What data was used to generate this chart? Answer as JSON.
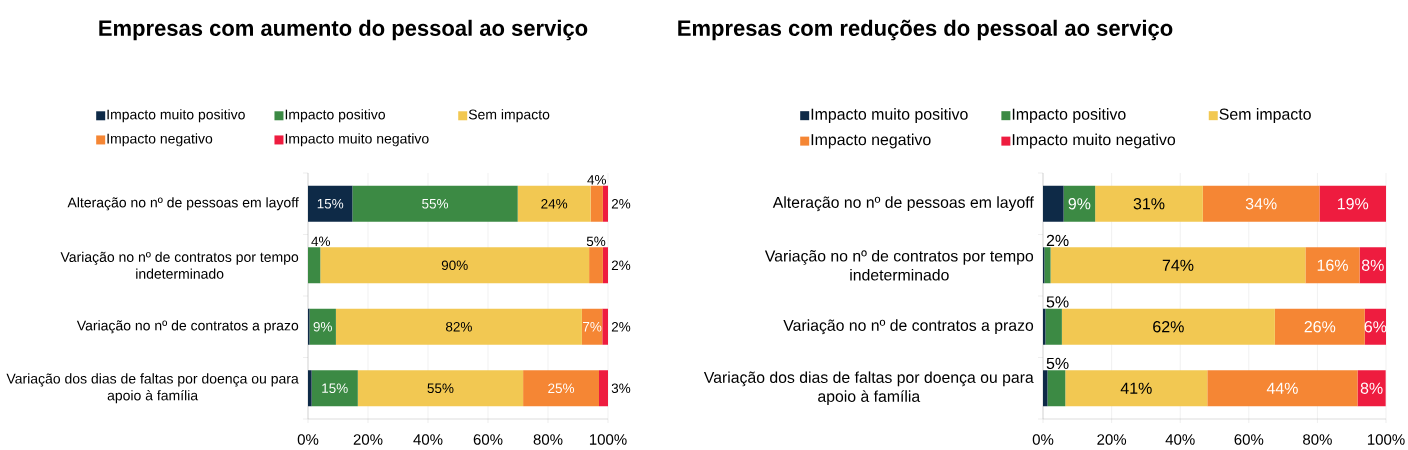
{
  "chart_data": [
    {
      "type": "bar",
      "orientation": "horizontal",
      "stacked": true,
      "title": "Empresas com aumento do pessoal ao serviço",
      "categories": [
        "Alteração no nº de pessoas em layoff",
        "Variação no nº de contratos por tempo indeterminado",
        "Variação no nº de contratos a prazo",
        "Variação dos dias de faltas por doença ou para apoio à família"
      ],
      "series": [
        {
          "name": "Impacto muito positivo",
          "color": "#0e2a47",
          "values": [
            14.8,
            0,
            0.5,
            1.2
          ],
          "value_labels": [
            "15%",
            null,
            null,
            null
          ]
        },
        {
          "name": "Impacto positivo",
          "color": "#3c8a44",
          "values": [
            55.1,
            4.1,
            8.8,
            15.4
          ],
          "value_labels": [
            "55%",
            "4%",
            "9%",
            "15%"
          ]
        },
        {
          "name": "Sem impacto",
          "color": "#f2c852",
          "values": [
            24.3,
            89.6,
            82.0,
            55.1
          ],
          "value_labels": [
            "24%",
            "90%",
            "82%",
            "55%"
          ]
        },
        {
          "name": "Impacto negativo",
          "color": "#f58634",
          "values": [
            4.1,
            4.6,
            6.8,
            25.3
          ],
          "value_labels": [
            "4%",
            "5%",
            "7%",
            "25%"
          ]
        },
        {
          "name": "Impacto muito negativo",
          "color": "#ee1c3f",
          "values": [
            1.7,
            1.7,
            1.9,
            3.0
          ],
          "value_labels": [
            "2%",
            "2%",
            "2%",
            "3%"
          ]
        }
      ],
      "xlim": [
        0,
        100
      ],
      "xticks": [
        {
          "value": 0,
          "label": "0%"
        },
        {
          "value": 20,
          "label": "20%"
        },
        {
          "value": 40,
          "label": "40%"
        },
        {
          "value": 60,
          "label": "60%"
        },
        {
          "value": 80,
          "label": "80%"
        },
        {
          "value": 100,
          "label": "100%"
        }
      ],
      "grid": "x",
      "legend": "top"
    },
    {
      "type": "bar",
      "orientation": "horizontal",
      "stacked": true,
      "title": "Empresas com reduções do pessoal ao serviço",
      "categories": [
        "Alteração no nº de pessoas em layoff",
        "Variação no nº de contratos por tempo indeterminado",
        "Variação no nº de contratos a prazo",
        "Variação dos dias de faltas por doença ou para apoio à família"
      ],
      "series": [
        {
          "name": "Impacto muito positivo",
          "color": "#0e2a47",
          "values": [
            6.0,
            0.4,
            0.7,
            1.3
          ],
          "value_labels": [
            null,
            null,
            null,
            null
          ]
        },
        {
          "name": "Impacto positivo",
          "color": "#3c8a44",
          "values": [
            9.2,
            1.8,
            4.8,
            5.2
          ],
          "value_labels": [
            "9%",
            "2%",
            "5%",
            "5%"
          ]
        },
        {
          "name": "Sem impacto",
          "color": "#f2c852",
          "values": [
            31.4,
            74.3,
            62.1,
            41.4
          ],
          "value_labels": [
            "31%",
            "74%",
            "62%",
            "41%"
          ]
        },
        {
          "name": "Impacto negativo",
          "color": "#f58634",
          "values": [
            34.0,
            15.8,
            26.2,
            43.8
          ],
          "value_labels": [
            "34%",
            "16%",
            "26%",
            "44%"
          ]
        },
        {
          "name": "Impacto muito negativo",
          "color": "#ee1c3f",
          "values": [
            19.4,
            7.7,
            6.2,
            8.2
          ],
          "value_labels": [
            "19%",
            "8%",
            "6%",
            "8%"
          ]
        }
      ],
      "xlim": [
        0,
        100
      ],
      "xticks": [
        {
          "value": 0,
          "label": "0%"
        },
        {
          "value": 20,
          "label": "20%"
        },
        {
          "value": 40,
          "label": "40%"
        },
        {
          "value": 60,
          "label": "60%"
        },
        {
          "value": 80,
          "label": "80%"
        },
        {
          "value": 100,
          "label": "100%"
        }
      ],
      "grid": "x",
      "legend": "top"
    }
  ]
}
